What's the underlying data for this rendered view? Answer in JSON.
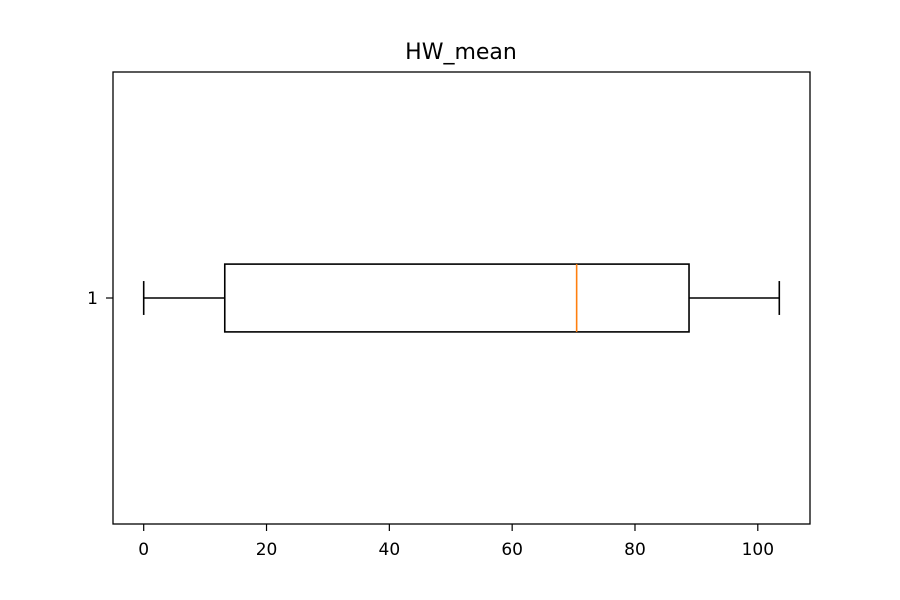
{
  "chart_data": {
    "type": "box",
    "orientation": "horizontal",
    "title": "HW_mean",
    "xlabel": "",
    "ylabel": "",
    "categories": [
      "1"
    ],
    "xlim": [
      -5,
      108.5
    ],
    "xticks": [
      0,
      20,
      40,
      60,
      80,
      100
    ],
    "grid": false,
    "boxes": [
      {
        "category": "1",
        "whisker_low": 0,
        "q1": 13.2,
        "median": 70.5,
        "q3": 88.8,
        "whisker_high": 103.5
      }
    ],
    "colors": {
      "box": "#000000",
      "median": "#ff7f0e",
      "axes": "#000000"
    }
  }
}
